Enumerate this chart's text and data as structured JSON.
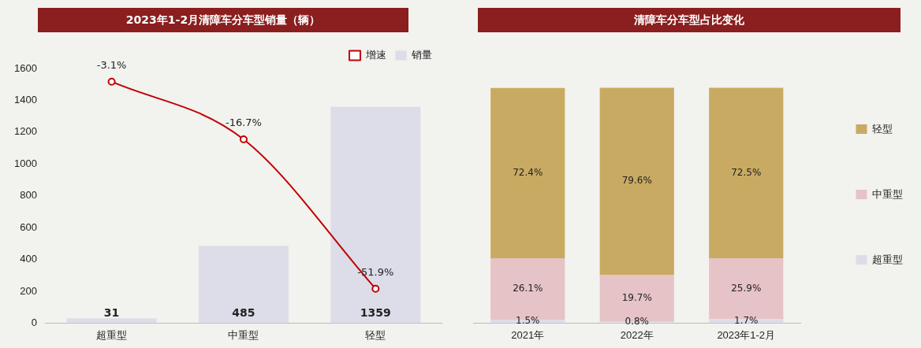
{
  "chart_data": [
    {
      "type": "bar",
      "title": "2023年1-2月清障车分车型销量（辆）",
      "categories": [
        "超重型",
        "中重型",
        "轻型"
      ],
      "ylim": [
        0,
        1600
      ],
      "yticks": [
        0,
        200,
        400,
        600,
        800,
        1000,
        1200,
        1400,
        1600
      ],
      "y2lim": [
        -60,
        0
      ],
      "legend": "top right",
      "series": [
        {
          "type": "bar",
          "name": "销量",
          "color": "#dcdde8",
          "values": [
            31,
            485,
            1359
          ],
          "value_labels": [
            "31",
            "485",
            "1359"
          ]
        },
        {
          "type": "line",
          "name": "增速",
          "color": "#c00000",
          "axis": "y2",
          "marker": "circle",
          "values": [
            -3.1,
            -16.7,
            -51.9
          ],
          "value_labels": [
            "-3.1%",
            "-16.7%",
            "-51.9%"
          ]
        }
      ]
    },
    {
      "type": "bar",
      "title": "清障车分车型占比变化",
      "categories": [
        "2021年",
        "2022年",
        "2023年1-2月"
      ],
      "stacked": true,
      "tick_labels": "x",
      "legend": "right",
      "series": [
        {
          "name": "超重型",
          "color": "#dcdde8",
          "values": [
            1.5,
            0.8,
            1.7
          ],
          "value_labels": [
            "1.5%",
            "0.8%",
            "1.7%"
          ]
        },
        {
          "name": "中重型",
          "color": "#e6c3c6",
          "values": [
            26.1,
            19.7,
            25.9
          ],
          "value_labels": [
            "26.1%",
            "19.7%",
            "25.9%"
          ]
        },
        {
          "name": "轻型",
          "color": "#c9aa62",
          "values": [
            72.4,
            79.6,
            72.5
          ],
          "value_labels": [
            "72.4%",
            "79.6%",
            "72.5%"
          ]
        }
      ]
    }
  ]
}
